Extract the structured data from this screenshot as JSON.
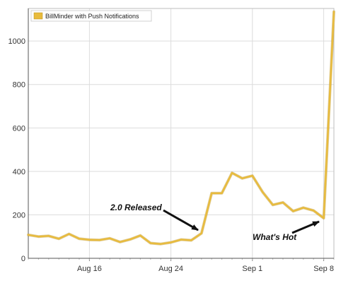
{
  "chart_data": {
    "type": "line",
    "title": "",
    "xlabel": "",
    "ylabel": "",
    "ylim": [
      0,
      1150
    ],
    "xlim": [
      "2010-08-10",
      "2010-09-09"
    ],
    "y_ticks": [
      0,
      200,
      400,
      600,
      800,
      1000
    ],
    "x_ticks": [
      {
        "date": "2010-08-16",
        "label": "Aug 16"
      },
      {
        "date": "2010-08-24",
        "label": "Aug 24"
      },
      {
        "date": "2010-09-01",
        "label": "Sep 1"
      },
      {
        "date": "2010-09-08",
        "label": "Sep 8"
      }
    ],
    "grid": true,
    "legend_position": "top-left",
    "series": [
      {
        "name": "BillMinder with Push Notifications",
        "color": "#e8bb3d",
        "x": [
          "2010-08-10",
          "2010-08-11",
          "2010-08-12",
          "2010-08-13",
          "2010-08-14",
          "2010-08-15",
          "2010-08-16",
          "2010-08-17",
          "2010-08-18",
          "2010-08-19",
          "2010-08-20",
          "2010-08-21",
          "2010-08-22",
          "2010-08-23",
          "2010-08-24",
          "2010-08-25",
          "2010-08-26",
          "2010-08-27",
          "2010-08-28",
          "2010-08-29",
          "2010-08-30",
          "2010-08-31",
          "2010-09-01",
          "2010-09-02",
          "2010-09-03",
          "2010-09-04",
          "2010-09-05",
          "2010-09-06",
          "2010-09-07",
          "2010-09-08",
          "2010-09-09"
        ],
        "values": [
          108,
          100,
          103,
          90,
          112,
          90,
          85,
          84,
          92,
          75,
          87,
          105,
          70,
          66,
          73,
          86,
          83,
          115,
          300,
          300,
          393,
          368,
          380,
          305,
          246,
          257,
          217,
          233,
          220,
          185,
          1135
        ]
      }
    ],
    "annotations": [
      {
        "text": "2.0 Released",
        "points_to": "2010-08-27"
      },
      {
        "text": "What's Hot",
        "points_to": "2010-09-08"
      }
    ]
  }
}
